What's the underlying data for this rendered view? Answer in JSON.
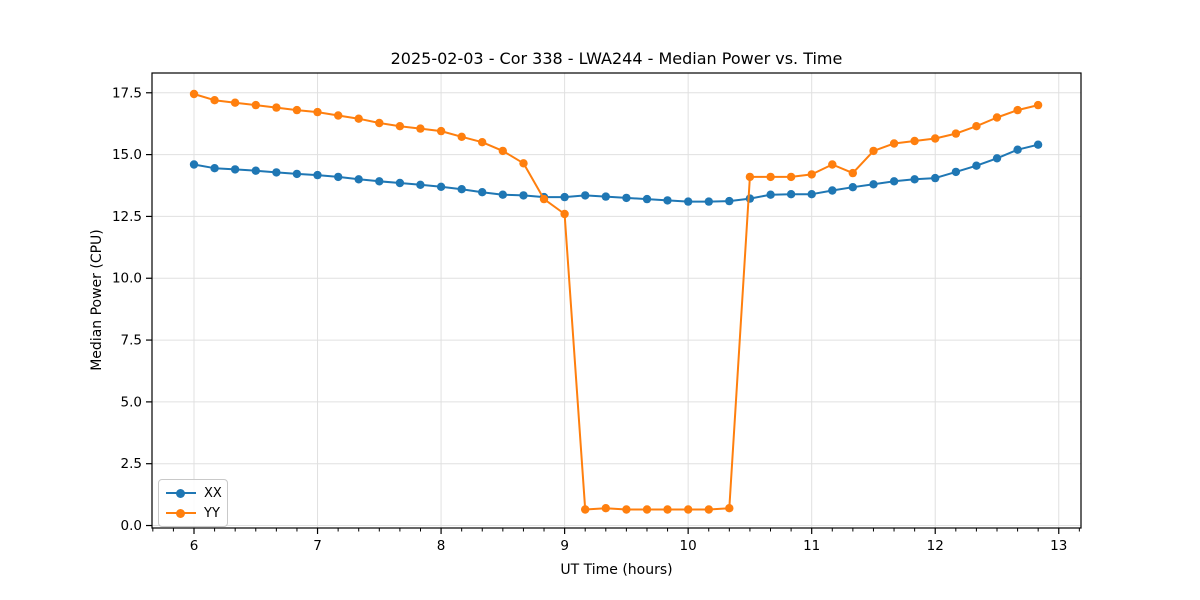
{
  "chart_data": {
    "type": "line",
    "title": "2025-02-03 - Cor 338 - LWA244 - Median Power vs. Time",
    "xlabel": "UT Time (hours)",
    "ylabel": "Median Power (CPU)",
    "grid": true,
    "legend_position": "lower left",
    "xlim": [
      5.66,
      13.18
    ],
    "ylim": [
      -0.1,
      18.3
    ],
    "xticks": {
      "values": [
        6,
        7,
        8,
        9,
        10,
        11,
        12,
        13
      ],
      "labels": [
        "6",
        "7",
        "8",
        "9",
        "10",
        "11",
        "12",
        "13"
      ]
    },
    "yticks": {
      "values": [
        0,
        2.5,
        5,
        7.5,
        10,
        12.5,
        15,
        17.5
      ],
      "labels": [
        "0.0",
        "2.5",
        "5.0",
        "7.5",
        "10.0",
        "12.5",
        "15.0",
        "17.5"
      ]
    },
    "x_minor_tick_step": 0.1667,
    "x": [
      6.0,
      6.167,
      6.333,
      6.5,
      6.667,
      6.833,
      7.0,
      7.167,
      7.333,
      7.5,
      7.667,
      7.833,
      8.0,
      8.167,
      8.333,
      8.5,
      8.667,
      8.833,
      9.0,
      9.167,
      9.333,
      9.5,
      9.667,
      9.833,
      10.0,
      10.167,
      10.333,
      10.5,
      10.667,
      10.833,
      11.0,
      11.167,
      11.333,
      11.5,
      11.667,
      11.833,
      12.0,
      12.167,
      12.333,
      12.5,
      12.667,
      12.833
    ],
    "series": [
      {
        "name": "XX",
        "color": "#1f77b4",
        "marker": "circle",
        "values": [
          14.6,
          14.45,
          14.4,
          14.35,
          14.28,
          14.22,
          14.17,
          14.1,
          14.0,
          13.92,
          13.85,
          13.78,
          13.7,
          13.6,
          13.48,
          13.38,
          13.35,
          13.28,
          13.28,
          13.35,
          13.3,
          13.25,
          13.2,
          13.15,
          13.1,
          13.1,
          13.12,
          13.22,
          13.38,
          13.4,
          13.4,
          13.55,
          13.68,
          13.8,
          13.92,
          14.0,
          14.05,
          14.3,
          14.55,
          14.85,
          15.2,
          15.4
        ]
      },
      {
        "name": "YY",
        "color": "#ff7f0e",
        "marker": "circle",
        "values": [
          17.45,
          17.2,
          17.1,
          17.0,
          16.9,
          16.8,
          16.72,
          16.58,
          16.45,
          16.28,
          16.15,
          16.05,
          15.95,
          15.72,
          15.5,
          15.15,
          14.65,
          13.2,
          12.6,
          0.65,
          0.7,
          0.65,
          0.65,
          0.65,
          0.65,
          0.65,
          0.7,
          14.1,
          14.1,
          14.1,
          14.2,
          14.6,
          14.25,
          15.15,
          15.45,
          15.55,
          15.65,
          15.85,
          16.15,
          16.5,
          16.8,
          17.0
        ]
      }
    ],
    "colors": {
      "grid": "#e0e0e0",
      "spine": "#000000",
      "text": "#000000",
      "background": "#ffffff"
    }
  }
}
